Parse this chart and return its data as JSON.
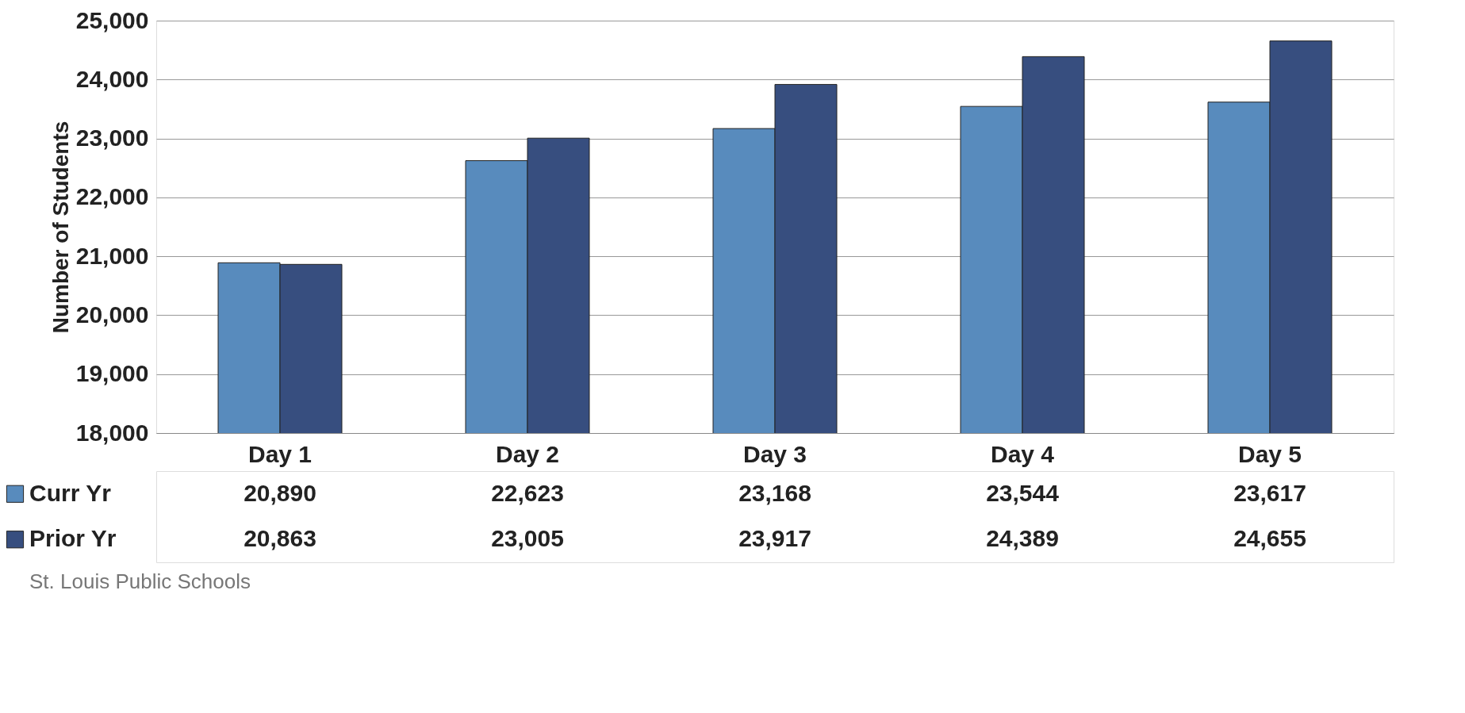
{
  "chart_data": {
    "type": "bar",
    "ylabel": "Number of Students",
    "categories": [
      "Day 1",
      "Day 2",
      "Day 3",
      "Day 4",
      "Day 5"
    ],
    "series": [
      {
        "name": "Curr Yr",
        "color": "#588bbd",
        "values": [
          20890,
          22623,
          23168,
          23544,
          23617
        ],
        "value_labels": [
          "20,890",
          "22,623",
          "23,168",
          "23,544",
          "23,617"
        ]
      },
      {
        "name": "Prior Yr",
        "color": "#374e7f",
        "values": [
          20863,
          23005,
          23917,
          24389,
          24655
        ],
        "value_labels": [
          "20,863",
          "23,005",
          "23,917",
          "24,389",
          "24,655"
        ]
      }
    ],
    "ylim": [
      18000,
      25000
    ],
    "yticks": [
      {
        "value": 18000,
        "label": "18,000"
      },
      {
        "value": 19000,
        "label": "19,000"
      },
      {
        "value": 20000,
        "label": "20,000"
      },
      {
        "value": 21000,
        "label": "21,000"
      },
      {
        "value": 22000,
        "label": "22,000"
      },
      {
        "value": 23000,
        "label": "23,000"
      },
      {
        "value": 24000,
        "label": "24,000"
      },
      {
        "value": 25000,
        "label": "25,000"
      }
    ],
    "grid": "y",
    "legend": "bottom",
    "annotations": [
      "St. Louis Public Schools"
    ]
  }
}
